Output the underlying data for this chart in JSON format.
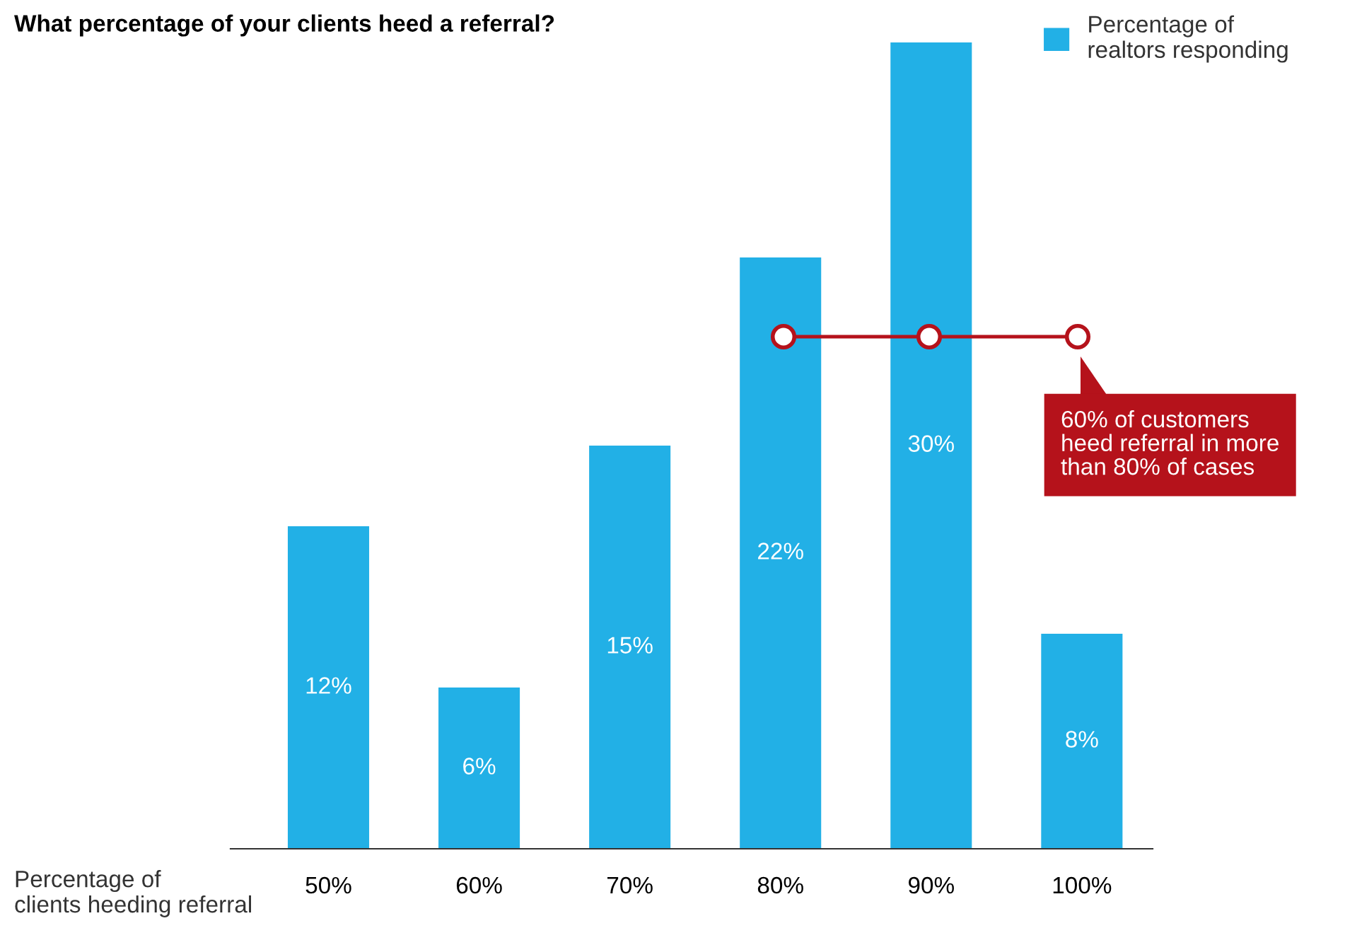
{
  "chart_data": {
    "type": "bar",
    "title": "What percentage of your clients heed a referral?",
    "xlabel": "Percentage of\nclients heeding referral",
    "categories": [
      "50%",
      "60%",
      "70%",
      "80%",
      "90%",
      "100%"
    ],
    "series": [
      {
        "name": "Percentage of\nrealtors responding",
        "color": "#22b0e6",
        "values": [
          12,
          6,
          15,
          22,
          30,
          8
        ],
        "value_labels": [
          "12%",
          "6%",
          "15%",
          "22%",
          "30%",
          "8%"
        ]
      }
    ],
    "legend": "top right",
    "annotations": [
      "60% of customers\nheed referral in more\nthan 80% of cases"
    ]
  }
}
